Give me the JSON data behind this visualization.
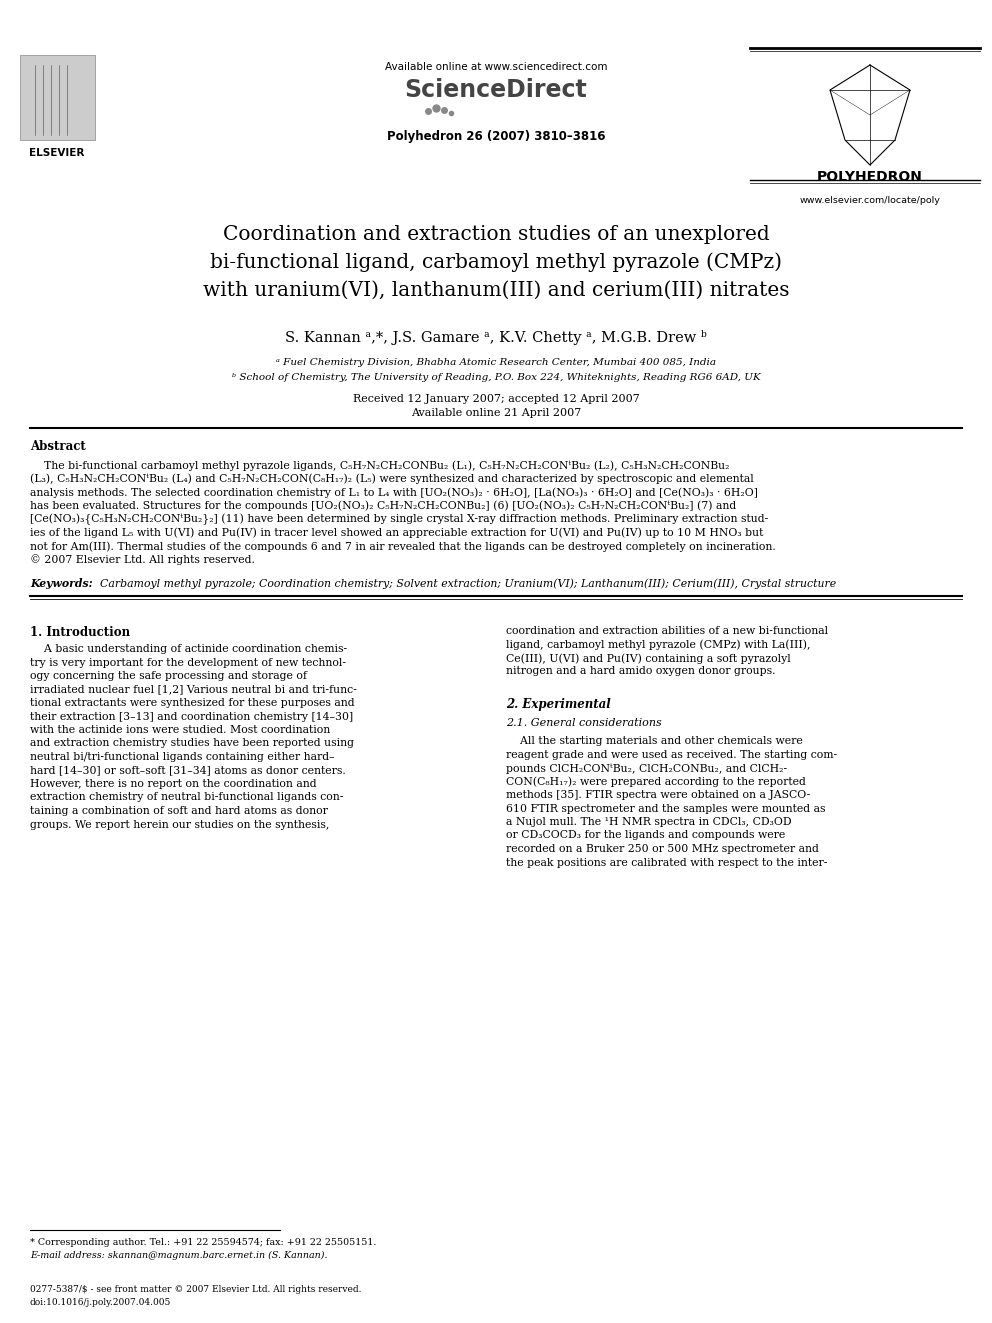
{
  "page_width": 9.92,
  "page_height": 13.23,
  "bg_color": "#ffffff",
  "header_available": "Available online at www.sciencedirect.com",
  "header_journal": "Polyhedron 26 (2007) 3810–3816",
  "header_polyhedron": "POLYHEDRON",
  "header_website": "www.elsevier.com/locate/poly",
  "title": "Coordination and extraction studies of an unexplored\nbi-functional ligand, carbamoyl methyl pyrazole (CMPz)\nwith uranium(VI), lanthanum(III) and cerium(III) nitrates",
  "authors": "S. Kannan ᵃ,*, J.S. Gamare ᵃ, K.V. Chetty ᵃ, M.G.B. Drew ᵇ",
  "affil_a": "ᵃ Fuel Chemistry Division, Bhabha Atomic Research Center, Mumbai 400 085, India",
  "affil_b": "ᵇ School of Chemistry, The University of Reading, P.O. Box 224, Whiteknights, Reading RG6 6AD, UK",
  "received": "Received 12 January 2007; accepted 12 April 2007",
  "available_online": "Available online 21 April 2007",
  "abstract_label": "Abstract",
  "abstract_p1": "    The bi-functional carbamoyl methyl pyrazole ligands, C₅H₇N₂CH₂CONBu₂ (L₁), C₅H₇N₂CH₂CONᵗBu₂ (L₂), C₅H₃N₂CH₂CONBu₂",
  "abstract_p2": "(L₃), C₅H₃N₂CH₂CONᵗBu₂ (L₄) and C₅H₇N₂CH₂CON(C₈H₁₇)₂ (L₅) were synthesized and characterized by spectroscopic and elemental",
  "abstract_p3": "analysis methods. The selected coordination chemistry of L₁ to L₄ with [UO₂(NO₃)₂ · 6H₂O], [La(NO₃)₃ · 6H₂O] and [Ce(NO₃)₃ · 6H₂O]",
  "abstract_p4": "has been evaluated. Structures for the compounds [UO₂(NO₃)₂ C₅H₇N₂CH₂CONBu₂] (6) [UO₂(NO₃)₂ C₅H₇N₂CH₂CONᵗBu₂] (7) and",
  "abstract_p5": "[Ce(NO₃)₃{C₅H₃N₂CH₂CONᵗBu₂}₂] (11) have been determined by single crystal X-ray diffraction methods. Preliminary extraction stud-",
  "abstract_p6": "ies of the ligand L₅ with U(VI) and Pu(IV) in tracer level showed an appreciable extraction for U(VI) and Pu(IV) up to 10 M HNO₃ but",
  "abstract_p7": "not for Am(III). Thermal studies of the compounds 6 and 7 in air revealed that the ligands can be destroyed completely on incineration.",
  "abstract_p8": "© 2007 Elsevier Ltd. All rights reserved.",
  "keywords_label": "Keywords:",
  "keywords_text": "  Carbamoyl methyl pyrazole; Coordination chemistry; Solvent extraction; Uranium(VI); Lanthanum(III); Cerium(III), Crystal structure",
  "sec1_title": "1. Introduction",
  "sec1_col1_l1": "    A basic understanding of actinide coordination chemis-",
  "sec1_col1_l2": "try is very important for the development of new technol-",
  "sec1_col1_l3": "ogy concerning the safe processing and storage of",
  "sec1_col1_l4": "irradiated nuclear fuel [1,2] Various neutral bi and tri-func-",
  "sec1_col1_l5": "tional extractants were synthesized for these purposes and",
  "sec1_col1_l6": "their extraction [3–13] and coordination chemistry [14–30]",
  "sec1_col1_l7": "with the actinide ions were studied. Most coordination",
  "sec1_col1_l8": "and extraction chemistry studies have been reported using",
  "sec1_col1_l9": "neutral bi/tri-functional ligands containing either hard–",
  "sec1_col1_l10": "hard [14–30] or soft–soft [31–34] atoms as donor centers.",
  "sec1_col1_l11": "However, there is no report on the coordination and",
  "sec1_col1_l12": "extraction chemistry of neutral bi-functional ligands con-",
  "sec1_col1_l13": "taining a combination of soft and hard atoms as donor",
  "sec1_col1_l14": "groups. We report herein our studies on the synthesis,",
  "sec1_col2_l1": "coordination and extraction abilities of a new bi-functional",
  "sec1_col2_l2": "ligand, carbamoyl methyl pyrazole (CMPz) with La(III),",
  "sec1_col2_l3": "Ce(III), U(VI) and Pu(IV) containing a soft pyrazolyl",
  "sec1_col2_l4": "nitrogen and a hard amido oxygen donor groups.",
  "sec2_title": "2. Experimental",
  "sec21_title": "2.1. General considerations",
  "sec2_col2_l1": "    All the starting materials and other chemicals were",
  "sec2_col2_l2": "reagent grade and were used as received. The starting com-",
  "sec2_col2_l3": "pounds ClCH₂CONᵗBu₂, ClCH₂CONBu₂, and ClCH₂-",
  "sec2_col2_l4": "CON(C₈H₁₇)₂ were prepared according to the reported",
  "sec2_col2_l5": "methods [35]. FTIR spectra were obtained on a JASCO-",
  "sec2_col2_l6": "610 FTIR spectrometer and the samples were mounted as",
  "sec2_col2_l7": "a Nujol mull. The ¹H NMR spectra in CDCl₃, CD₃OD",
  "sec2_col2_l8": "or CD₃COCD₃ for the ligands and compounds were",
  "sec2_col2_l9": "recorded on a Bruker 250 or 500 MHz spectrometer and",
  "sec2_col2_l10": "the peak positions are calibrated with respect to the inter-",
  "footnote1": "* Corresponding author. Tel.: +91 22 25594574; fax: +91 22 25505151.",
  "footnote2": "E-mail address: skannan@magnum.barc.ernet.in (S. Kannan).",
  "footer1": "0277-5387/$ - see front matter © 2007 Elsevier Ltd. All rights reserved.",
  "footer2": "doi:10.1016/j.poly.2007.04.005"
}
